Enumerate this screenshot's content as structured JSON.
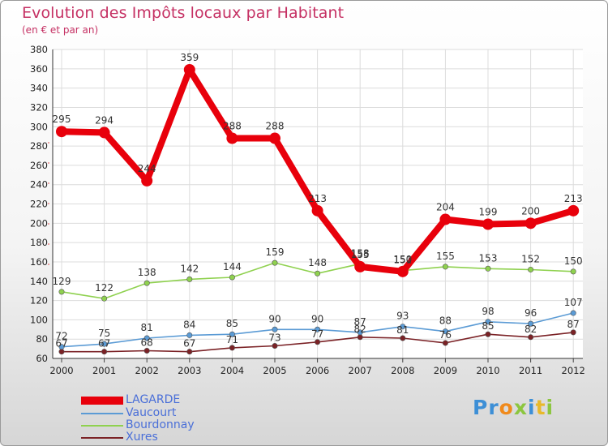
{
  "title": "Evolution des Impôts locaux par Habitant",
  "subtitle": "(en € et par an)",
  "logo": {
    "letters": [
      "P",
      "r",
      "o",
      "x",
      "i",
      "t",
      "i"
    ],
    "colors": [
      "#3d8fd6",
      "#3d8fd6",
      "#f08a1c",
      "#8cc63f",
      "#3d8fd6",
      "#e8b92a",
      "#8cc63f"
    ]
  },
  "chart_data": {
    "type": "line",
    "title": "Evolution des Impôts locaux par Habitant",
    "subtitle": "(en € et par an)",
    "xlabel": "",
    "ylabel": "",
    "x": [
      "2000",
      "2001",
      "2002",
      "2003",
      "2004",
      "2005",
      "2006",
      "2007",
      "2008",
      "2009",
      "2010",
      "2011",
      "2012"
    ],
    "ylim": [
      60,
      380
    ],
    "yticks": [
      60,
      80,
      100,
      120,
      140,
      160,
      180,
      200,
      220,
      240,
      260,
      280,
      300,
      320,
      340,
      360,
      380
    ],
    "grid": true,
    "legend_position": "bottom-left",
    "series": [
      {
        "name": "LAGARDE",
        "color": "#e8000b",
        "values": [
          295,
          294,
          244,
          359,
          288,
          288,
          213,
          155,
          150,
          204,
          199,
          200,
          213
        ],
        "labels": [
          "295",
          "294",
          "244",
          "359",
          "288",
          "288",
          "213",
          "155",
          "150",
          "204",
          "199",
          "200",
          "213"
        ]
      },
      {
        "name": "Vaucourt",
        "color": "#5b9bd5",
        "values": [
          72,
          75,
          81,
          84,
          85,
          90,
          90,
          87,
          93,
          88,
          98,
          96,
          107
        ],
        "labels": [
          "72",
          "75",
          "81",
          "84",
          "85",
          "90",
          "90",
          "87",
          "93",
          "88",
          "98",
          "96",
          "107"
        ]
      },
      {
        "name": "Bourdonnay",
        "color": "#8fd14f",
        "values": [
          129,
          122,
          138,
          142,
          144,
          159,
          148,
          158,
          151,
          155,
          153,
          152,
          150
        ],
        "labels": [
          "129",
          "122",
          "138",
          "142",
          "144",
          "159",
          "148",
          "158",
          "151",
          "155",
          "153",
          "152",
          "150"
        ]
      },
      {
        "name": "Xures",
        "color": "#7b2226",
        "values": [
          67,
          67,
          68,
          67,
          71,
          73,
          77,
          82,
          81,
          76,
          85,
          82,
          87
        ],
        "labels": [
          "67",
          "67",
          "68",
          "67",
          "71",
          "73",
          "77",
          "82",
          "81",
          "76",
          "85",
          "82",
          "87"
        ]
      }
    ]
  }
}
